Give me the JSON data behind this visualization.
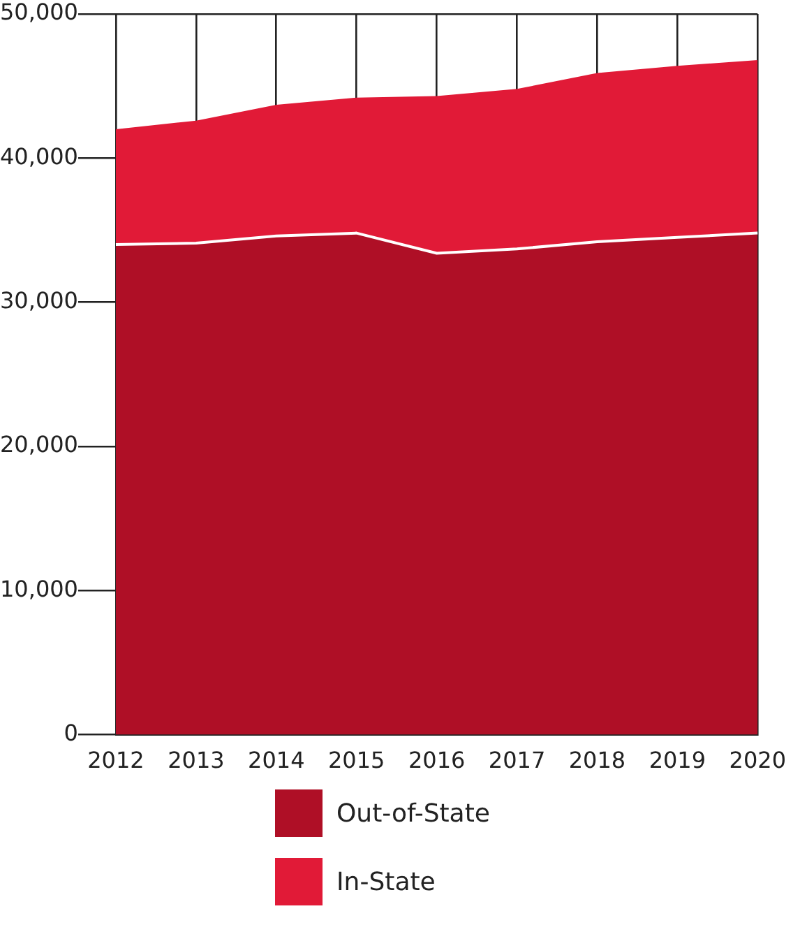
{
  "chart_data": {
    "type": "area",
    "stacked": true,
    "categories": [
      "2012",
      "2013",
      "2014",
      "2015",
      "2016",
      "2017",
      "2018",
      "2019",
      "2020"
    ],
    "series": [
      {
        "name": "Out-of-State",
        "color": "#af0f26",
        "values": [
          34000,
          34100,
          34600,
          34800,
          33400,
          33700,
          34200,
          34500,
          34800
        ]
      },
      {
        "name": "In-State",
        "color": "#e11a37",
        "values": [
          8000,
          8500,
          9100,
          9400,
          10900,
          11100,
          11700,
          11900,
          12000
        ]
      }
    ],
    "ylim": [
      0,
      50000
    ],
    "yticks": [
      0,
      {
        "value": 10000,
        "label": "10,000"
      },
      {
        "value": 20000,
        "label": "20,000"
      },
      {
        "value": 30000,
        "label": "30,000"
      },
      {
        "value": 40000,
        "label": "40,000"
      },
      {
        "value": 50000,
        "label": "50,000"
      }
    ],
    "grid": true,
    "legend": "bottom"
  }
}
